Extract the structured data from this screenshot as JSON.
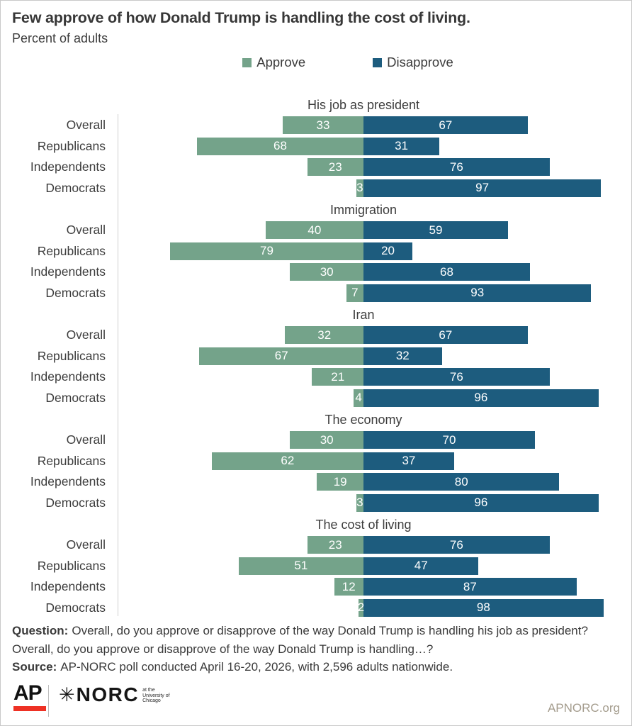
{
  "chart_data": {
    "type": "bar",
    "variant": "horizontal-diverging-stacked",
    "title": "Few approve of how Donald Trump is handling the cost of living.",
    "subtitle": "Percent of adults",
    "unit": "percent",
    "legend_position": "top",
    "legend": [
      {
        "label": "Approve",
        "color": "#74a38a"
      },
      {
        "label": "Disapprove",
        "color": "#1d5c7e"
      }
    ],
    "categories": [
      "Overall",
      "Republicans",
      "Independents",
      "Democrats"
    ],
    "groups": [
      {
        "title": "His job as president",
        "series": [
          {
            "name": "Approve",
            "values": [
              33,
              68,
              23,
              3
            ]
          },
          {
            "name": "Disapprove",
            "values": [
              67,
              31,
              76,
              97
            ]
          }
        ]
      },
      {
        "title": "Immigration",
        "series": [
          {
            "name": "Approve",
            "values": [
              40,
              79,
              30,
              7
            ]
          },
          {
            "name": "Disapprove",
            "values": [
              59,
              20,
              68,
              93
            ]
          }
        ]
      },
      {
        "title": "Iran",
        "series": [
          {
            "name": "Approve",
            "values": [
              32,
              67,
              21,
              4
            ]
          },
          {
            "name": "Disapprove",
            "values": [
              67,
              32,
              76,
              96
            ]
          }
        ]
      },
      {
        "title": "The economy",
        "series": [
          {
            "name": "Approve",
            "values": [
              30,
              62,
              19,
              3
            ]
          },
          {
            "name": "Disapprove",
            "values": [
              70,
              37,
              80,
              96
            ]
          }
        ]
      },
      {
        "title": "The cost of living",
        "series": [
          {
            "name": "Approve",
            "values": [
              23,
              51,
              12,
              2
            ]
          },
          {
            "name": "Disapprove",
            "values": [
              76,
              47,
              87,
              98
            ]
          }
        ]
      }
    ]
  },
  "footer": {
    "question_label": "Question:",
    "question_text": "Overall, do you approve or disapprove of the way Donald Trump is handling his job as president? Overall, do you approve or disapprove of the way Donald Trump is handling…?",
    "source_label": "Source:",
    "source_text": "AP-NORC poll conducted April 16-20, 2026, with 2,596 adults nationwide."
  },
  "branding": {
    "ap_logo": "AP",
    "ap_red": "#ee3124",
    "norc_star": "✳",
    "norc_logo": "NORC",
    "norc_tagline": [
      "at the",
      "University of",
      "Chicago"
    ],
    "site": "APNORC.org"
  }
}
